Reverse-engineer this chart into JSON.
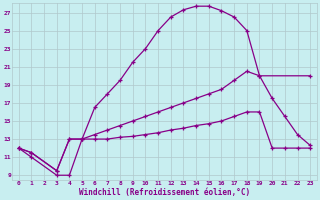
{
  "xlabel": "Windchill (Refroidissement éolien,°C)",
  "background_color": "#c8eef0",
  "grid_color": "#b0c8cc",
  "line_color": "#880088",
  "xlim": [
    -0.5,
    23.5
  ],
  "ylim": [
    8.5,
    28
  ],
  "yticks": [
    9,
    11,
    13,
    15,
    17,
    19,
    21,
    23,
    25,
    27
  ],
  "xticks": [
    0,
    1,
    2,
    3,
    4,
    5,
    6,
    7,
    8,
    9,
    10,
    11,
    12,
    13,
    14,
    15,
    16,
    17,
    18,
    19,
    20,
    21,
    22,
    23
  ],
  "lines": [
    {
      "x": [
        0,
        1,
        3,
        4,
        5,
        6,
        7,
        8,
        9,
        10,
        11,
        12,
        13,
        14,
        15,
        16,
        17,
        18,
        19,
        23
      ],
      "y": [
        12,
        11,
        9,
        9,
        13,
        16.5,
        18,
        19.5,
        21.5,
        23,
        25,
        26.5,
        27.3,
        27.7,
        27.7,
        27.2,
        26.5,
        25,
        20,
        20
      ]
    },
    {
      "x": [
        0,
        1,
        3,
        4,
        5,
        6,
        7,
        8,
        9,
        10,
        11,
        12,
        13,
        14,
        15,
        16,
        17,
        18,
        19,
        20,
        21,
        22,
        23
      ],
      "y": [
        12,
        11.5,
        9.5,
        13,
        13,
        13.5,
        14,
        14.5,
        15,
        15.5,
        16,
        16.5,
        17,
        17.5,
        18,
        18.5,
        19.5,
        20.5,
        20,
        17.5,
        15.5,
        13.5,
        12.3
      ]
    },
    {
      "x": [
        0,
        1,
        3,
        4,
        5,
        6,
        7,
        8,
        9,
        10,
        11,
        12,
        13,
        14,
        15,
        16,
        17,
        18,
        19,
        20,
        21,
        22,
        23
      ],
      "y": [
        12,
        11.5,
        9.5,
        13,
        13,
        13,
        13,
        13.2,
        13.3,
        13.5,
        13.7,
        14,
        14.2,
        14.5,
        14.7,
        15,
        15.5,
        16,
        16,
        12,
        12,
        12,
        12
      ]
    }
  ]
}
